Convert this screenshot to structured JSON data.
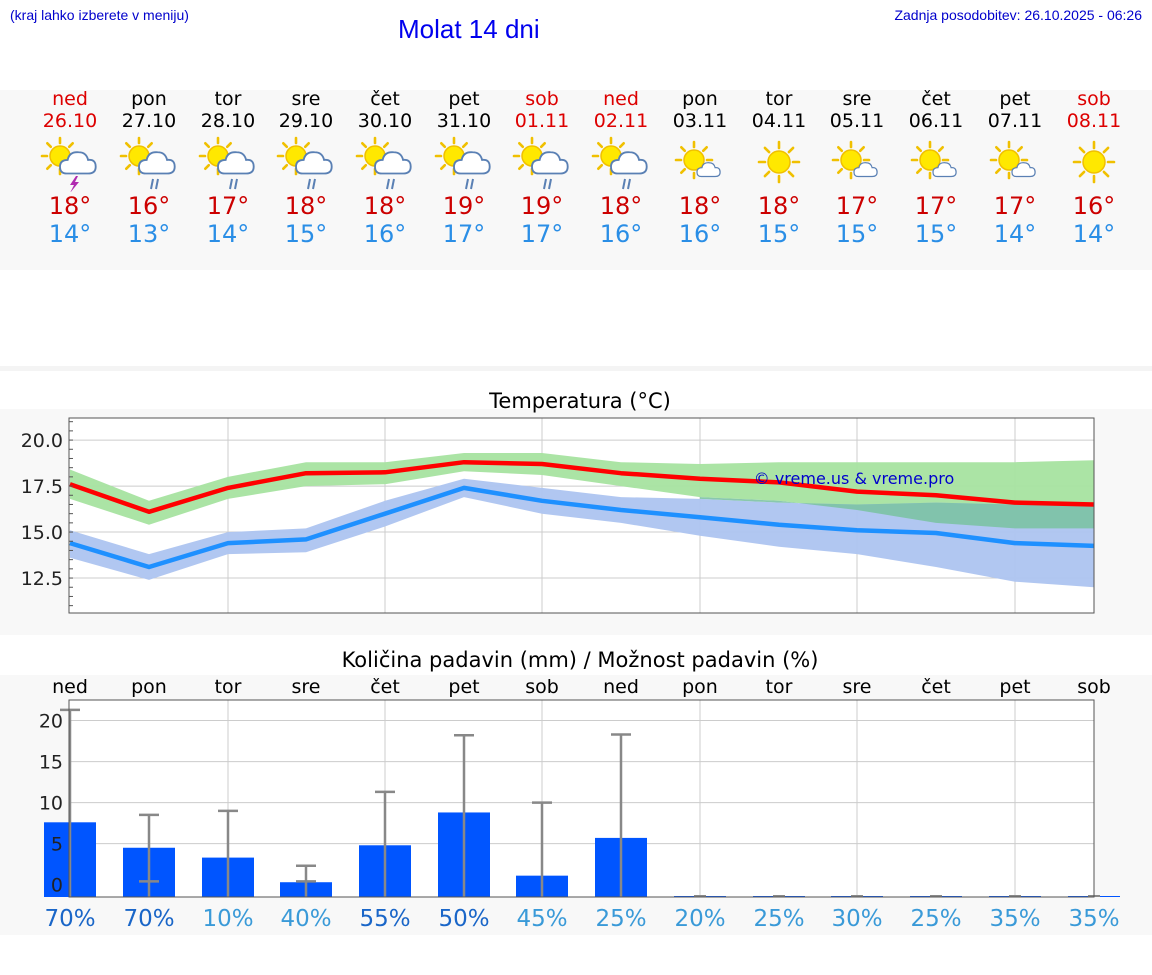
{
  "header": {
    "note": "(kraj lahko izberete v meniju)",
    "title": "Molat 14 dni",
    "update": "Zadnja posodobitev: 26.10.2025 - 06:26"
  },
  "colors": {
    "max_temp": "#ff0000",
    "min_temp": "#1e90ff",
    "max_band": "#a6e3a0",
    "min_band": "#adc4f0",
    "rain_bar": "#0055ff",
    "weekend": "#dd0000"
  },
  "days": [
    {
      "name": "ned",
      "date": "26.10",
      "weekend": true,
      "icon": "sun-cloud-thunder-icon",
      "max": "18°",
      "min": "14°"
    },
    {
      "name": "pon",
      "date": "27.10",
      "weekend": false,
      "icon": "sun-cloud-rain-icon",
      "max": "16°",
      "min": "13°"
    },
    {
      "name": "tor",
      "date": "28.10",
      "weekend": false,
      "icon": "sun-cloud-rain-icon",
      "max": "17°",
      "min": "14°"
    },
    {
      "name": "sre",
      "date": "29.10",
      "weekend": false,
      "icon": "sun-cloud-rain-icon",
      "max": "18°",
      "min": "15°"
    },
    {
      "name": "čet",
      "date": "30.10",
      "weekend": false,
      "icon": "sun-cloud-rain-icon",
      "max": "18°",
      "min": "16°"
    },
    {
      "name": "pet",
      "date": "31.10",
      "weekend": false,
      "icon": "sun-cloud-rain-icon",
      "max": "19°",
      "min": "17°"
    },
    {
      "name": "sob",
      "date": "01.11",
      "weekend": true,
      "icon": "sun-cloud-rain-icon",
      "max": "19°",
      "min": "17°"
    },
    {
      "name": "ned",
      "date": "02.11",
      "weekend": true,
      "icon": "sun-cloud-rain-icon",
      "max": "18°",
      "min": "16°"
    },
    {
      "name": "pon",
      "date": "03.11",
      "weekend": false,
      "icon": "sun-small-cloud-icon",
      "max": "18°",
      "min": "16°"
    },
    {
      "name": "tor",
      "date": "04.11",
      "weekend": false,
      "icon": "sun-icon",
      "max": "18°",
      "min": "15°"
    },
    {
      "name": "sre",
      "date": "05.11",
      "weekend": false,
      "icon": "sun-small-cloud-icon",
      "max": "17°",
      "min": "15°"
    },
    {
      "name": "čet",
      "date": "06.11",
      "weekend": false,
      "icon": "sun-small-cloud-icon",
      "max": "17°",
      "min": "15°"
    },
    {
      "name": "pet",
      "date": "07.11",
      "weekend": false,
      "icon": "sun-small-cloud-icon",
      "max": "17°",
      "min": "14°"
    },
    {
      "name": "sob",
      "date": "08.11",
      "weekend": true,
      "icon": "sun-icon",
      "max": "16°",
      "min": "14°"
    }
  ],
  "chart_data": [
    {
      "type": "line",
      "title": "Temperatura (°C)",
      "watermark": "© vreme.us & vreme.pro",
      "xlabel": "",
      "ylabel": "",
      "ylim": [
        10.6,
        21.2
      ],
      "yticks": [
        "20.0",
        "17.5",
        "15.0",
        "12.5"
      ],
      "ytick_values": [
        20.0,
        17.5,
        15.0,
        12.5
      ],
      "grid": true,
      "x": [
        0,
        1,
        2,
        3,
        4,
        5,
        6,
        7,
        8,
        9,
        10,
        11,
        12,
        13
      ],
      "series": [
        {
          "name": "max",
          "values": [
            17.6,
            16.1,
            17.4,
            18.2,
            18.25,
            18.8,
            18.7,
            18.2,
            17.9,
            17.7,
            17.2,
            17.0,
            16.6,
            16.5
          ]
        },
        {
          "name": "min",
          "values": [
            14.4,
            13.1,
            14.4,
            14.6,
            16.0,
            17.4,
            16.7,
            16.2,
            15.8,
            15.4,
            15.1,
            14.95,
            14.4,
            14.25
          ]
        },
        {
          "name": "max_band_upper",
          "values": [
            18.4,
            16.7,
            18.0,
            18.8,
            18.8,
            19.3,
            19.3,
            18.8,
            18.7,
            18.8,
            18.8,
            18.8,
            18.8,
            18.9
          ]
        },
        {
          "name": "max_band_lower",
          "values": [
            16.8,
            15.4,
            16.8,
            17.5,
            17.6,
            18.3,
            18.1,
            17.5,
            16.9,
            16.7,
            16.2,
            15.5,
            15.2,
            15.2
          ]
        },
        {
          "name": "min_band_upper",
          "values": [
            15.1,
            13.8,
            15.0,
            15.2,
            16.7,
            17.9,
            17.4,
            16.9,
            16.8,
            16.6,
            16.5,
            16.6,
            16.5,
            16.5
          ]
        },
        {
          "name": "min_band_lower",
          "values": [
            13.6,
            12.4,
            13.8,
            13.9,
            15.3,
            16.9,
            16.0,
            15.5,
            14.8,
            14.2,
            13.8,
            13.1,
            12.3,
            12.0
          ]
        }
      ]
    },
    {
      "type": "bar",
      "title": "Količina padavin (mm) / Možnost padavin (%)",
      "categories": [
        "ned",
        "pon",
        "tor",
        "sre",
        "čet",
        "pet",
        "sob",
        "ned",
        "pon",
        "tor",
        "sre",
        "čet",
        "pet",
        "sob"
      ],
      "ylim": [
        -1.5,
        22.5
      ],
      "yticks": [
        "20",
        "15",
        "10",
        "5",
        "0"
      ],
      "ytick_values": [
        20,
        15,
        10,
        5,
        0
      ],
      "grid": true,
      "values": [
        7.6,
        4.5,
        3.3,
        0.3,
        4.8,
        8.8,
        1.1,
        5.7,
        0,
        0,
        0,
        0,
        0,
        0
      ],
      "error_low": [
        0,
        0,
        0,
        0,
        0,
        0,
        0,
        0,
        0,
        0,
        0,
        0,
        0,
        0
      ],
      "error_high": [
        21.3,
        8.5,
        9.0,
        2.3,
        11.3,
        18.2,
        10.0,
        18.3,
        0,
        0,
        0,
        0,
        0,
        0
      ],
      "chance": [
        "70%",
        "70%",
        "10%",
        "40%",
        "55%",
        "50%",
        "45%",
        "25%",
        "20%",
        "25%",
        "30%",
        "25%",
        "35%",
        "35%"
      ],
      "chance_colors": [
        "#1a66c8",
        "#1a66c8",
        "#3a9ad8",
        "#3a9ad8",
        "#1a66c8",
        "#1a66c8",
        "#3a9ad8",
        "#3a9ad8",
        "#3a9ad8",
        "#3a9ad8",
        "#3a9ad8",
        "#3a9ad8",
        "#3a9ad8",
        "#3a9ad8"
      ]
    }
  ]
}
